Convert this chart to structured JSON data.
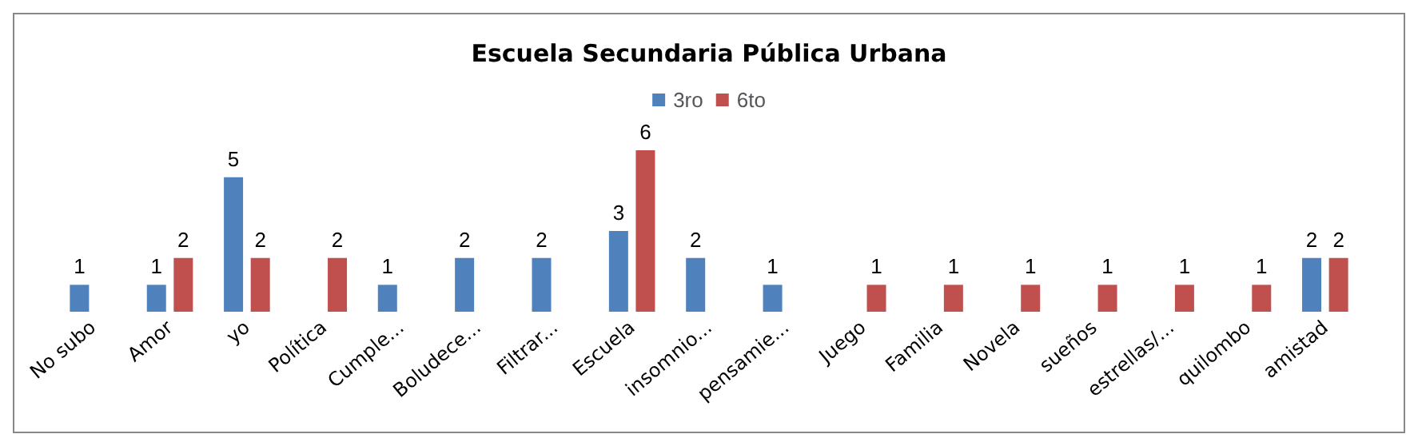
{
  "chart_data": {
    "type": "bar",
    "title": "Escuela Secundaria Pública Urbana",
    "categories": [
      "No subo",
      "Amor",
      "yo",
      "Política",
      "Cumple...",
      "Boludece...",
      "Filtrar...",
      "Escuela",
      "insomnio...",
      "pensamie...",
      "Juego",
      "Familia",
      "Novela",
      "sueños",
      "estrellas/...",
      "quilombo",
      "amistad"
    ],
    "series": [
      {
        "name": "3ro",
        "color": "#4f81bd",
        "values": [
          1,
          1,
          5,
          null,
          1,
          2,
          2,
          3,
          2,
          1,
          null,
          null,
          null,
          null,
          null,
          null,
          2
        ]
      },
      {
        "name": "6to",
        "color": "#c0504d",
        "values": [
          null,
          2,
          2,
          2,
          null,
          null,
          null,
          6,
          null,
          null,
          1,
          1,
          1,
          1,
          1,
          1,
          2
        ]
      }
    ],
    "data_labels": true,
    "legend": "top"
  }
}
